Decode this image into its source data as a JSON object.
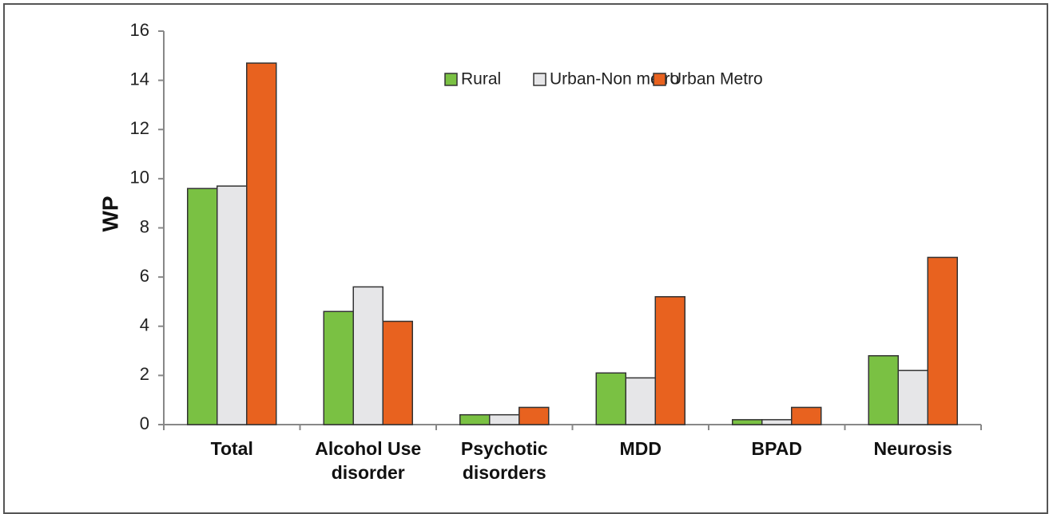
{
  "chart_data": {
    "type": "bar",
    "categories": [
      [
        "Total"
      ],
      [
        "Alcohol Use",
        "disorder"
      ],
      [
        "Psychotic",
        "disorders"
      ],
      [
        "MDD"
      ],
      [
        "BPAD"
      ],
      [
        "Neurosis"
      ]
    ],
    "series": [
      {
        "name": "Rural",
        "color": "#7ac143",
        "values": [
          9.6,
          4.6,
          0.4,
          2.1,
          0.2,
          2.8
        ]
      },
      {
        "name": "Urban-Non metro",
        "color": "#e6e6e8",
        "values": [
          9.7,
          5.6,
          0.4,
          1.9,
          0.2,
          2.2
        ]
      },
      {
        "name": "Urban Metro",
        "color": "#e8621f",
        "values": [
          14.7,
          4.2,
          0.7,
          5.2,
          0.7,
          6.8
        ]
      }
    ],
    "ylabel": "WP",
    "xlabel": "",
    "ylim": [
      0,
      16
    ],
    "yticks": [
      0,
      2,
      4,
      6,
      8,
      10,
      12,
      14,
      16
    ],
    "grid": false,
    "legend_position": "top-right"
  }
}
